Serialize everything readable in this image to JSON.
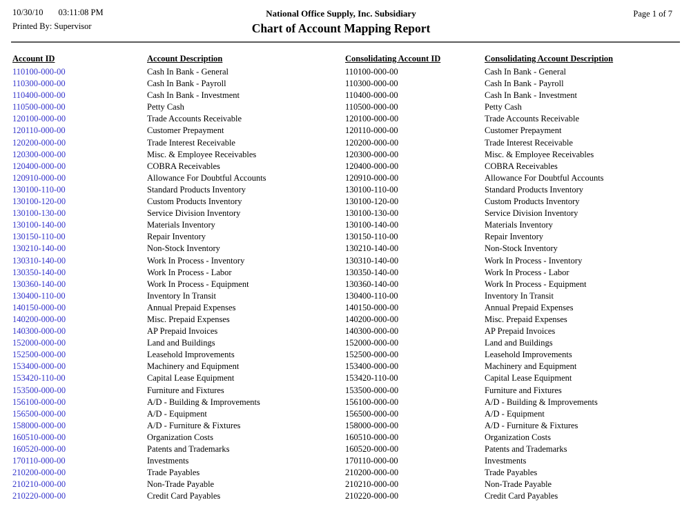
{
  "header": {
    "date": "10/30/10",
    "time": "03:11:08 PM",
    "printed_by_label": "Printed By:",
    "printed_by_value": "Supervisor",
    "company": "National Office Supply, Inc. Subsidiary",
    "title": "Chart of Account Mapping Report",
    "page": "Page 1 of 7"
  },
  "colors": {
    "account_id_link": "#3333cc",
    "text": "#000000",
    "divider": "#5a5a5a",
    "background": "#ffffff"
  },
  "table": {
    "columns": [
      "Account ID",
      "Account Description",
      "Consolidating Account ID",
      "Consolidating Account Description"
    ],
    "rows": [
      [
        "110100-000-00",
        "Cash In Bank - General",
        "110100-000-00",
        "Cash In Bank - General"
      ],
      [
        "110300-000-00",
        "Cash In Bank - Payroll",
        "110300-000-00",
        "Cash In Bank - Payroll"
      ],
      [
        "110400-000-00",
        "Cash In Bank - Investment",
        "110400-000-00",
        "Cash In Bank - Investment"
      ],
      [
        "110500-000-00",
        "Petty Cash",
        "110500-000-00",
        "Petty Cash"
      ],
      [
        "120100-000-00",
        "Trade Accounts Receivable",
        "120100-000-00",
        "Trade Accounts Receivable"
      ],
      [
        "120110-000-00",
        "Customer Prepayment",
        "120110-000-00",
        "Customer Prepayment"
      ],
      [
        "120200-000-00",
        "Trade Interest Receivable",
        "120200-000-00",
        "Trade Interest Receivable"
      ],
      [
        "120300-000-00",
        "Misc. & Employee Receivables",
        "120300-000-00",
        "Misc. & Employee Receivables"
      ],
      [
        "120400-000-00",
        "COBRA Receivables",
        "120400-000-00",
        "COBRA Receivables"
      ],
      [
        "120910-000-00",
        "Allowance For Doubtful Accounts",
        "120910-000-00",
        "Allowance For Doubtful Accounts"
      ],
      [
        "130100-110-00",
        "Standard Products Inventory",
        "130100-110-00",
        "Standard Products Inventory"
      ],
      [
        "130100-120-00",
        "Custom Products Inventory",
        "130100-120-00",
        "Custom Products Inventory"
      ],
      [
        "130100-130-00",
        "Service Division Inventory",
        "130100-130-00",
        "Service Division Inventory"
      ],
      [
        "130100-140-00",
        "Materials Inventory",
        "130100-140-00",
        "Materials Inventory"
      ],
      [
        "130150-110-00",
        "Repair Inventory",
        "130150-110-00",
        "Repair Inventory"
      ],
      [
        "130210-140-00",
        "Non-Stock Inventory",
        "130210-140-00",
        "Non-Stock Inventory"
      ],
      [
        "130310-140-00",
        "Work In Process - Inventory",
        "130310-140-00",
        "Work In Process - Inventory"
      ],
      [
        "130350-140-00",
        "Work In Process - Labor",
        "130350-140-00",
        "Work In Process - Labor"
      ],
      [
        "130360-140-00",
        "Work In Process - Equipment",
        "130360-140-00",
        "Work In Process - Equipment"
      ],
      [
        "130400-110-00",
        "Inventory In Transit",
        "130400-110-00",
        "Inventory In Transit"
      ],
      [
        "140150-000-00",
        "Annual Prepaid Expenses",
        "140150-000-00",
        "Annual Prepaid Expenses"
      ],
      [
        "140200-000-00",
        "Misc. Prepaid Expenses",
        "140200-000-00",
        "Misc. Prepaid Expenses"
      ],
      [
        "140300-000-00",
        "AP Prepaid Invoices",
        "140300-000-00",
        "AP Prepaid Invoices"
      ],
      [
        "152000-000-00",
        "Land and Buildings",
        "152000-000-00",
        "Land and Buildings"
      ],
      [
        "152500-000-00",
        "Leasehold Improvements",
        "152500-000-00",
        "Leasehold Improvements"
      ],
      [
        "153400-000-00",
        "Machinery and Equipment",
        "153400-000-00",
        "Machinery and Equipment"
      ],
      [
        "153420-110-00",
        "Capital Lease Equipment",
        "153420-110-00",
        "Capital Lease Equipment"
      ],
      [
        "153500-000-00",
        "Furniture and Fixtures",
        "153500-000-00",
        "Furniture and Fixtures"
      ],
      [
        "156100-000-00",
        "A/D - Building & Improvements",
        "156100-000-00",
        "A/D - Building & Improvements"
      ],
      [
        "156500-000-00",
        "A/D - Equipment",
        "156500-000-00",
        "A/D - Equipment"
      ],
      [
        "158000-000-00",
        "A/D - Furniture & Fixtures",
        "158000-000-00",
        "A/D - Furniture & Fixtures"
      ],
      [
        "160510-000-00",
        "Organization Costs",
        "160510-000-00",
        "Organization Costs"
      ],
      [
        "160520-000-00",
        "Patents and Trademarks",
        "160520-000-00",
        "Patents and Trademarks"
      ],
      [
        "170110-000-00",
        "Investments",
        "170110-000-00",
        "Investments"
      ],
      [
        "210200-000-00",
        "Trade Payables",
        "210200-000-00",
        "Trade Payables"
      ],
      [
        "210210-000-00",
        "Non-Trade Payable",
        "210210-000-00",
        "Non-Trade Payable"
      ],
      [
        "210220-000-00",
        "Credit Card Payables",
        "210220-000-00",
        "Credit Card Payables"
      ]
    ]
  }
}
